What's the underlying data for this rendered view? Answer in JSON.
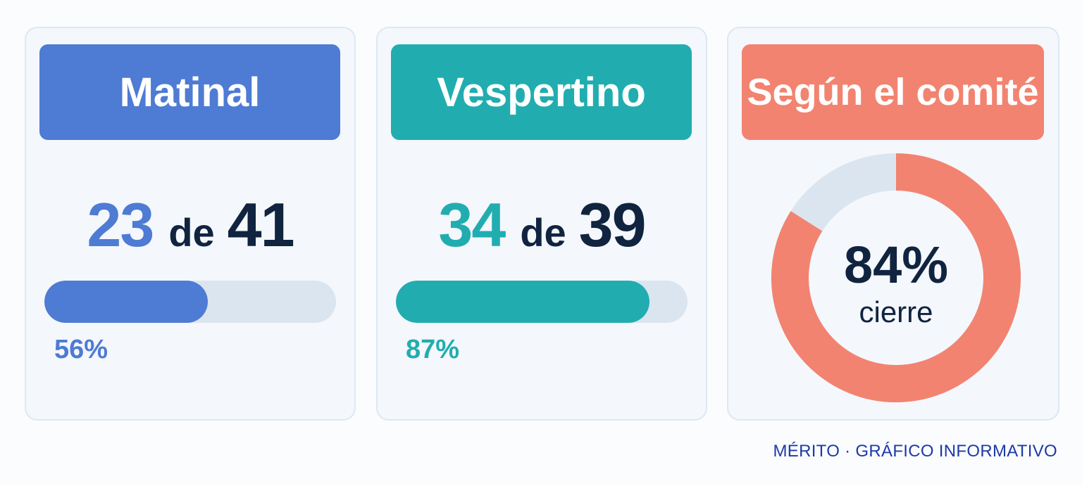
{
  "colors": {
    "blue": "#4e7bd3",
    "teal": "#21adb0",
    "coral": "#f28370",
    "track": "#dbe5ef",
    "dark": "#10233f"
  },
  "chart_data": [
    {
      "type": "bar",
      "title": "Matinal",
      "value": 23,
      "total": 41,
      "of_label": "de",
      "percent_label": "56%",
      "fraction": 0.56
    },
    {
      "type": "bar",
      "title": "Vespertino",
      "value": 34,
      "total": 39,
      "of_label": "de",
      "percent_label": "87%",
      "fraction": 0.87
    },
    {
      "type": "pie",
      "title": "Según el comité",
      "value_label": "84%",
      "caption": "cierre",
      "fraction": 0.84
    }
  ],
  "footer": "MÉRITO · GRÁFICO INFORMATIVO"
}
